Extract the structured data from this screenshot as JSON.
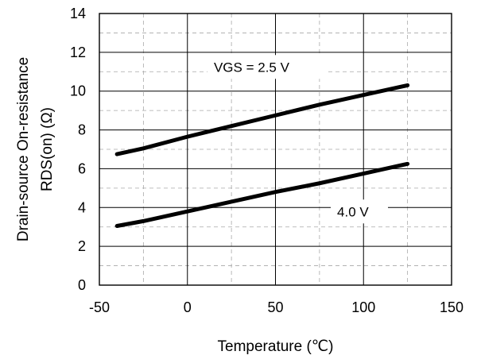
{
  "chart_data": {
    "type": "line",
    "title": "",
    "xlabel": "Temperature (℃)",
    "ylabel": [
      "Drain-source On-resistance",
      "RDS(on)  (Ω)"
    ],
    "xlim": [
      -50,
      150
    ],
    "ylim": [
      0,
      14
    ],
    "x_ticks": [
      -50,
      0,
      50,
      100,
      150
    ],
    "y_ticks": [
      0,
      2,
      4,
      6,
      8,
      10,
      12,
      14
    ],
    "x_minor_step": 25,
    "y_minor_step": 1,
    "grid": true,
    "series": [
      {
        "label": "VGS = 2.5 V",
        "x": [
          -40,
          -25,
          0,
          25,
          50,
          75,
          100,
          125
        ],
        "y": [
          6.75,
          7.05,
          7.65,
          8.2,
          8.75,
          9.3,
          9.8,
          10.3
        ]
      },
      {
        "label": "4.0 V",
        "x": [
          -40,
          -25,
          0,
          25,
          50,
          75,
          100,
          125
        ],
        "y": [
          3.05,
          3.3,
          3.8,
          4.3,
          4.8,
          5.25,
          5.75,
          6.25
        ]
      }
    ],
    "annotations": [
      {
        "text": "VGS = 2.5 V",
        "x": 15,
        "y": 11.0
      },
      {
        "text": "4.0 V",
        "x": 85,
        "y": 3.55
      }
    ]
  }
}
